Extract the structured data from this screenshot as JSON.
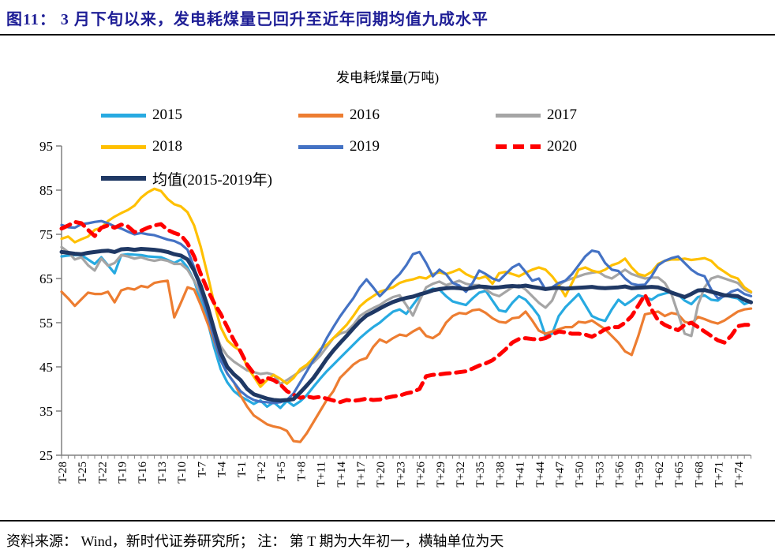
{
  "page": {
    "header_title": "图11： 3 月下旬以来，发电耗煤量已回升至近年同期均值九成水平",
    "source_note": "资料来源： Wind，新时代证券研究所； 注： 第 T 期为大年初一，横轴单位为天"
  },
  "chart_data": {
    "type": "line",
    "title": "发电耗煤量(万吨)",
    "xlabel": "",
    "ylabel": "",
    "ylim": [
      25,
      95
    ],
    "y_ticks": [
      25,
      35,
      45,
      55,
      65,
      75,
      85,
      95
    ],
    "x_range_days": [
      -28,
      76
    ],
    "x_tick_step_days": 3,
    "x_tick_labels": [
      "T-28",
      "T-25",
      "T-22",
      "T-19",
      "T-16",
      "T-13",
      "T-10",
      "T-7",
      "T-4",
      "T-1",
      "T+2",
      "T+5",
      "T+8",
      "T+11",
      "T+14",
      "T+17",
      "T+20",
      "T+23",
      "T+26",
      "T+29",
      "T+32",
      "T+35",
      "T+38",
      "T+41",
      "T+44",
      "T+47",
      "T+50",
      "T+53",
      "T+56",
      "T+59",
      "T+62",
      "T+65",
      "T+68",
      "T+71",
      "T+74"
    ],
    "grid": false,
    "legend_position": "top",
    "axis_color": "#808080",
    "series": [
      {
        "name": "2015",
        "color": "#27AAE1",
        "style": "solid",
        "width": 3.2,
        "start_day": -28,
        "values": [
          70,
          70.2,
          70.3,
          70.3,
          69.3,
          68.3,
          69.8,
          68,
          66.2,
          70.3,
          70.5,
          70.4,
          70.3,
          70,
          69.9,
          69.8,
          69.2,
          68.5,
          69.3,
          67.5,
          64.5,
          60,
          55.5,
          49.5,
          44.5,
          41.5,
          39.5,
          38.3,
          37.5,
          36.6,
          37.4,
          36,
          37,
          35.7,
          37.3,
          36.2,
          37.2,
          38.6,
          40.5,
          42.3,
          44,
          45.5,
          47,
          48.5,
          50,
          51.5,
          52.8,
          54,
          55,
          56.3,
          57.5,
          58,
          57,
          59,
          61,
          62,
          62.7,
          62.5,
          61,
          59.8,
          59.4,
          59,
          60.5,
          61.8,
          62.2,
          60,
          57.8,
          57.5,
          59.5,
          61,
          60.2,
          58.5,
          56.5,
          52,
          52.5,
          56.5,
          58.5,
          60,
          61.5,
          59,
          56.5,
          55.8,
          55.4,
          58,
          60.2,
          59,
          60,
          61.2,
          60.8,
          60.2,
          61.2,
          61.6,
          62,
          61.4,
          60,
          59.2,
          60.8,
          61.2,
          60.2,
          60,
          61.2,
          60.8,
          60.5,
          59.2,
          59.8
        ]
      },
      {
        "name": "2016",
        "color": "#ED7D31",
        "style": "solid",
        "width": 3.2,
        "start_day": -28,
        "values": [
          62,
          60.5,
          58.8,
          60.3,
          61.8,
          61.5,
          61.5,
          62,
          59.6,
          62.3,
          62.8,
          62.5,
          63.3,
          63,
          64,
          64.3,
          64.5,
          56.2,
          59.5,
          63,
          62.5,
          59,
          55,
          51,
          46.5,
          43.5,
          41.5,
          38.5,
          36,
          34,
          33,
          32,
          31.5,
          31.2,
          30.5,
          28.2,
          28,
          30,
          32.5,
          35,
          37.5,
          39.5,
          42.5,
          44,
          45.5,
          46.5,
          47,
          49.5,
          51.2,
          50.5,
          51.5,
          52.3,
          52,
          53,
          53.8,
          52,
          51.5,
          52.5,
          55,
          56.5,
          57.2,
          57,
          57.8,
          58,
          57.2,
          56,
          55.2,
          55,
          56,
          56.2,
          57.5,
          55.5,
          53.2,
          52.5,
          53,
          53.5,
          54,
          54,
          55.2,
          55,
          55.5,
          54.5,
          53.5,
          52,
          50.5,
          48.5,
          47.7,
          52,
          56.9,
          57.2,
          57.5,
          56.5,
          57.2,
          56.9,
          55.2,
          54.8,
          56.3,
          55.8,
          55.2,
          54.8,
          55.5,
          56.5,
          57.5,
          58,
          58.2
        ]
      },
      {
        "name": "2017",
        "color": "#A5A5A5",
        "style": "solid",
        "width": 3.2,
        "start_day": -28,
        "values": [
          72.1,
          71,
          69.3,
          69.8,
          68,
          66.8,
          69.5,
          67.9,
          68.5,
          70.3,
          70,
          69.5,
          69.8,
          69.3,
          69,
          69.3,
          69,
          68.3,
          68.3,
          67,
          64.5,
          61.4,
          57.5,
          53.5,
          49.7,
          47.5,
          46.2,
          45.2,
          44.2,
          43.8,
          43.4,
          43.6,
          43.2,
          41.1,
          42,
          43,
          44,
          45,
          46,
          47.5,
          49.5,
          51.5,
          52.5,
          53,
          54.5,
          56.5,
          57.5,
          58.3,
          59,
          60,
          60.8,
          61.2,
          59,
          56.6,
          60,
          63,
          63.8,
          64.3,
          63.5,
          64,
          64.5,
          63.8,
          63.5,
          63.5,
          62.5,
          61.5,
          61,
          62,
          63,
          63.5,
          62.5,
          61,
          59.5,
          58.4,
          60,
          63.5,
          64.5,
          65,
          65.5,
          66,
          66.3,
          66.5,
          65.5,
          65,
          66,
          67,
          66,
          65.5,
          65,
          65.2,
          65.2,
          64,
          61.5,
          57,
          52.5,
          52,
          59,
          63,
          65,
          65.5,
          65,
          64.5,
          64,
          62.5,
          61.8
        ]
      },
      {
        "name": "2018",
        "color": "#FFC000",
        "style": "solid",
        "width": 3.2,
        "start_day": -28,
        "values": [
          74,
          74.5,
          73.2,
          73.9,
          74.5,
          76,
          76.5,
          78,
          79,
          79.8,
          80.5,
          81.5,
          83.3,
          84.5,
          85.3,
          84.8,
          83,
          81.8,
          81.3,
          80,
          77,
          72.1,
          66,
          59.5,
          54,
          51,
          49.6,
          48.6,
          45,
          42.8,
          40.5,
          42,
          43.2,
          42.3,
          41.2,
          42.5,
          44.5,
          45.5,
          47,
          49,
          50,
          51.5,
          53,
          54.5,
          56.5,
          58.7,
          60,
          61,
          62,
          62.5,
          63,
          64,
          64.5,
          64.8,
          65.3,
          65,
          66,
          66.4,
          66,
          66.5,
          67.1,
          66,
          65.3,
          65,
          65.5,
          63.8,
          66.2,
          66.5,
          66,
          65.5,
          66.3,
          67,
          67.5,
          67,
          65.5,
          63.5,
          61,
          64,
          67,
          67.5,
          66.8,
          66.4,
          67,
          68,
          68.5,
          69.5,
          67.5,
          66,
          65.6,
          66.5,
          68.3,
          69,
          69.3,
          69.3,
          69.5,
          69.2,
          69.4,
          69.6,
          69,
          67.5,
          66.5,
          65.5,
          65,
          63,
          62
        ]
      },
      {
        "name": "2019",
        "color": "#4472C4",
        "style": "solid",
        "width": 3.2,
        "start_day": -28,
        "values": [
          77.1,
          76.6,
          76.5,
          77.3,
          77.5,
          77.8,
          78,
          77.5,
          76.8,
          76.3,
          75.6,
          75,
          75.3,
          75,
          74.8,
          74.3,
          73.8,
          73.5,
          72.8,
          71.5,
          67.5,
          62,
          57,
          51.5,
          46.5,
          43.5,
          41.5,
          39.5,
          38.3,
          37.5,
          37.1,
          37,
          36.8,
          37,
          37.5,
          39,
          41.5,
          44,
          46.5,
          48.5,
          51.5,
          54,
          56.4,
          58.5,
          60.5,
          63,
          64.8,
          63,
          61,
          62.5,
          64.5,
          66,
          68,
          70.5,
          71,
          68.5,
          65.5,
          67,
          66,
          64,
          63.4,
          62,
          64,
          66.8,
          66,
          65,
          64.5,
          66,
          67.5,
          68.3,
          66.5,
          64.5,
          65,
          62.5,
          63,
          64,
          64.5,
          66,
          68,
          70,
          71.3,
          71,
          68.5,
          67,
          66.7,
          65,
          63.8,
          63.5,
          63.6,
          65.5,
          68,
          69,
          69.6,
          70,
          68.5,
          67,
          66,
          65.5,
          62.5,
          60.5,
          61,
          62,
          62.5,
          61.5,
          61
        ]
      },
      {
        "name": "2020",
        "color": "#FF0000",
        "style": "dashed",
        "width": 5,
        "start_day": -28,
        "values": [
          76.3,
          77,
          77.8,
          77.5,
          76,
          74.6,
          76.5,
          77,
          76.5,
          77.2,
          76.8,
          75.5,
          75.8,
          76.5,
          77,
          77.3,
          76,
          75.3,
          74.8,
          73,
          70,
          66,
          62.5,
          59.5,
          57,
          54,
          51,
          48.5,
          45.5,
          43.5,
          41.5,
          42.5,
          42,
          41,
          39.5,
          38.7,
          38,
          38.3,
          38,
          38.2,
          37.8,
          37.4,
          37,
          37.5,
          37.3,
          37.5,
          37.8,
          37.5,
          37.6,
          38,
          38.3,
          38.5,
          39,
          39.3,
          40,
          42.9,
          43.2,
          43.3,
          43.5,
          43.6,
          43.8,
          44,
          44.6,
          45.3,
          45.8,
          46.5,
          47.7,
          49,
          50.5,
          51.3,
          51.5,
          51.3,
          51.2,
          51.5,
          52.3,
          53,
          52.8,
          52.5,
          52.5,
          52.3,
          51.8,
          52.6,
          53.5,
          54,
          54,
          55,
          56.5,
          58.9,
          61.3,
          58,
          55.5,
          54.5,
          53.8,
          53.3,
          54.5,
          55,
          54,
          53,
          52,
          51,
          50.5,
          52,
          54.2,
          54.5,
          54.5
        ]
      },
      {
        "name": "均值(2015-2019年)",
        "color": "#1F3864",
        "style": "solid",
        "width": 5,
        "start_day": -28,
        "values": [
          71,
          70.8,
          70.6,
          70.5,
          70.8,
          71,
          71.2,
          71.3,
          71,
          71.6,
          71.7,
          71.5,
          71.7,
          71.6,
          71.5,
          71.3,
          71,
          70.5,
          70.2,
          69.3,
          66.8,
          63.3,
          58.8,
          53.5,
          48.2,
          45,
          43.3,
          42,
          40,
          38.8,
          38.3,
          37.8,
          37.5,
          37.4,
          37.5,
          37.7,
          39.2,
          40.8,
          42.5,
          44.6,
          46.8,
          48.7,
          50.4,
          52,
          53.7,
          55.3,
          56.6,
          57.4,
          58.2,
          59,
          59.7,
          60.2,
          60.6,
          60.9,
          61.4,
          61.8,
          62.3,
          62.6,
          62.8,
          62.9,
          62.8,
          62.6,
          62.9,
          63.2,
          63.1,
          62.9,
          63,
          63.2,
          63.3,
          63.2,
          63.4,
          63.1,
          62.9,
          62.6,
          62.8,
          62.9,
          62.7,
          62.8,
          62.9,
          63,
          63.1,
          62.9,
          62.8,
          62.9,
          63,
          63.2,
          62.8,
          62.9,
          63,
          63.1,
          63,
          62.5,
          61.8,
          61.3,
          60.8,
          61.5,
          62.3,
          62.4,
          62,
          61.6,
          61.2,
          61.1,
          61,
          60.2,
          59.6
        ]
      }
    ]
  }
}
